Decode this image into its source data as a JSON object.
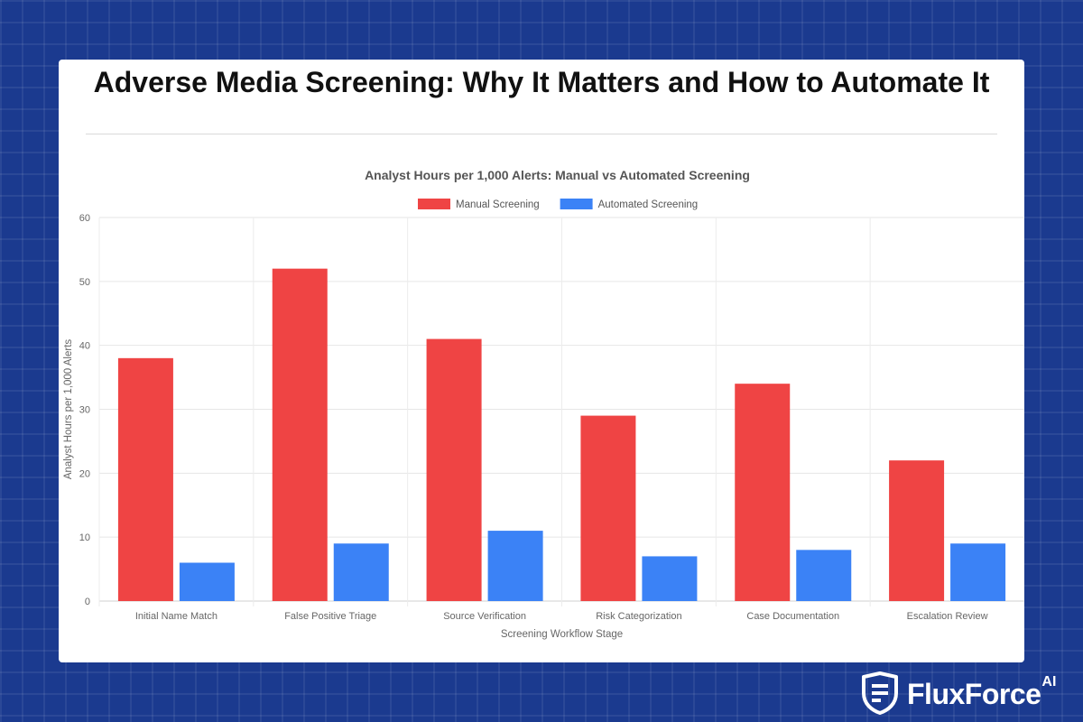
{
  "page": {
    "title": "Adverse Media Screening: Why It Matters and How to Automate It"
  },
  "brand": {
    "name": "FluxForce",
    "suffix": "AI",
    "icon": "shield-icon"
  },
  "colors": {
    "background": "#1b3a8f",
    "manual": "#ef4444",
    "automated": "#3b82f6"
  },
  "chart_data": {
    "type": "bar",
    "title": "Analyst Hours per 1,000 Alerts: Manual vs Automated Screening",
    "xlabel": "Screening Workflow Stage",
    "ylabel": "Analyst Hours per 1,000 Alerts",
    "categories": [
      "Initial Name Match",
      "False Positive Triage",
      "Source Verification",
      "Risk Categorization",
      "Case Documentation",
      "Escalation Review"
    ],
    "series": [
      {
        "name": "Manual Screening",
        "values": [
          38,
          52,
          41,
          29,
          34,
          22
        ],
        "color": "#ef4444"
      },
      {
        "name": "Automated Screening",
        "values": [
          6,
          9,
          11,
          7,
          8,
          9
        ],
        "color": "#3b82f6"
      }
    ],
    "ylim": [
      0,
      60
    ],
    "yticks": [
      0,
      10,
      20,
      30,
      40,
      50,
      60
    ],
    "grid": true,
    "legend_position": "top"
  }
}
